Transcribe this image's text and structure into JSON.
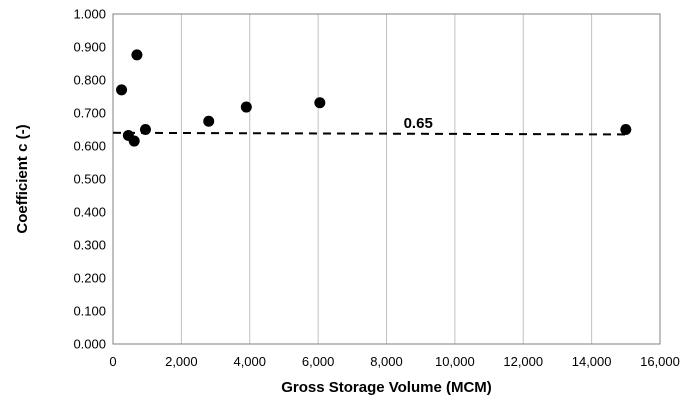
{
  "chart_data": {
    "type": "scatter",
    "title": "",
    "xlabel": "Gross Storage Volume (MCM)",
    "ylabel": "Coefficient c (-)",
    "xlim": [
      0,
      16000
    ],
    "ylim": [
      0,
      1
    ],
    "x_ticks": [
      "0",
      "2,000",
      "4,000",
      "6,000",
      "8,000",
      "10,000",
      "12,000",
      "14,000",
      "16,000"
    ],
    "y_ticks": [
      "0.000",
      "0.100",
      "0.200",
      "0.300",
      "0.400",
      "0.500",
      "0.600",
      "0.700",
      "0.800",
      "0.900",
      "1.000"
    ],
    "grid": "vertical",
    "legend": "none",
    "series": [
      {
        "points": [
          {
            "x": 250,
            "y": 0.77
          },
          {
            "x": 450,
            "y": 0.632
          },
          {
            "x": 620,
            "y": 0.615
          },
          {
            "x": 700,
            "y": 0.876
          },
          {
            "x": 950,
            "y": 0.65
          },
          {
            "x": 2800,
            "y": 0.675
          },
          {
            "x": 3900,
            "y": 0.718
          },
          {
            "x": 6050,
            "y": 0.731
          },
          {
            "x": 15000,
            "y": 0.65
          }
        ]
      }
    ],
    "reference_line": {
      "x": [
        0,
        15000
      ],
      "y": [
        0.64,
        0.635
      ],
      "label": "0.65",
      "label_x": 8500
    }
  },
  "colors": {
    "marker": "#000000",
    "grid": "#c0c0c0",
    "axis": "#808080"
  }
}
